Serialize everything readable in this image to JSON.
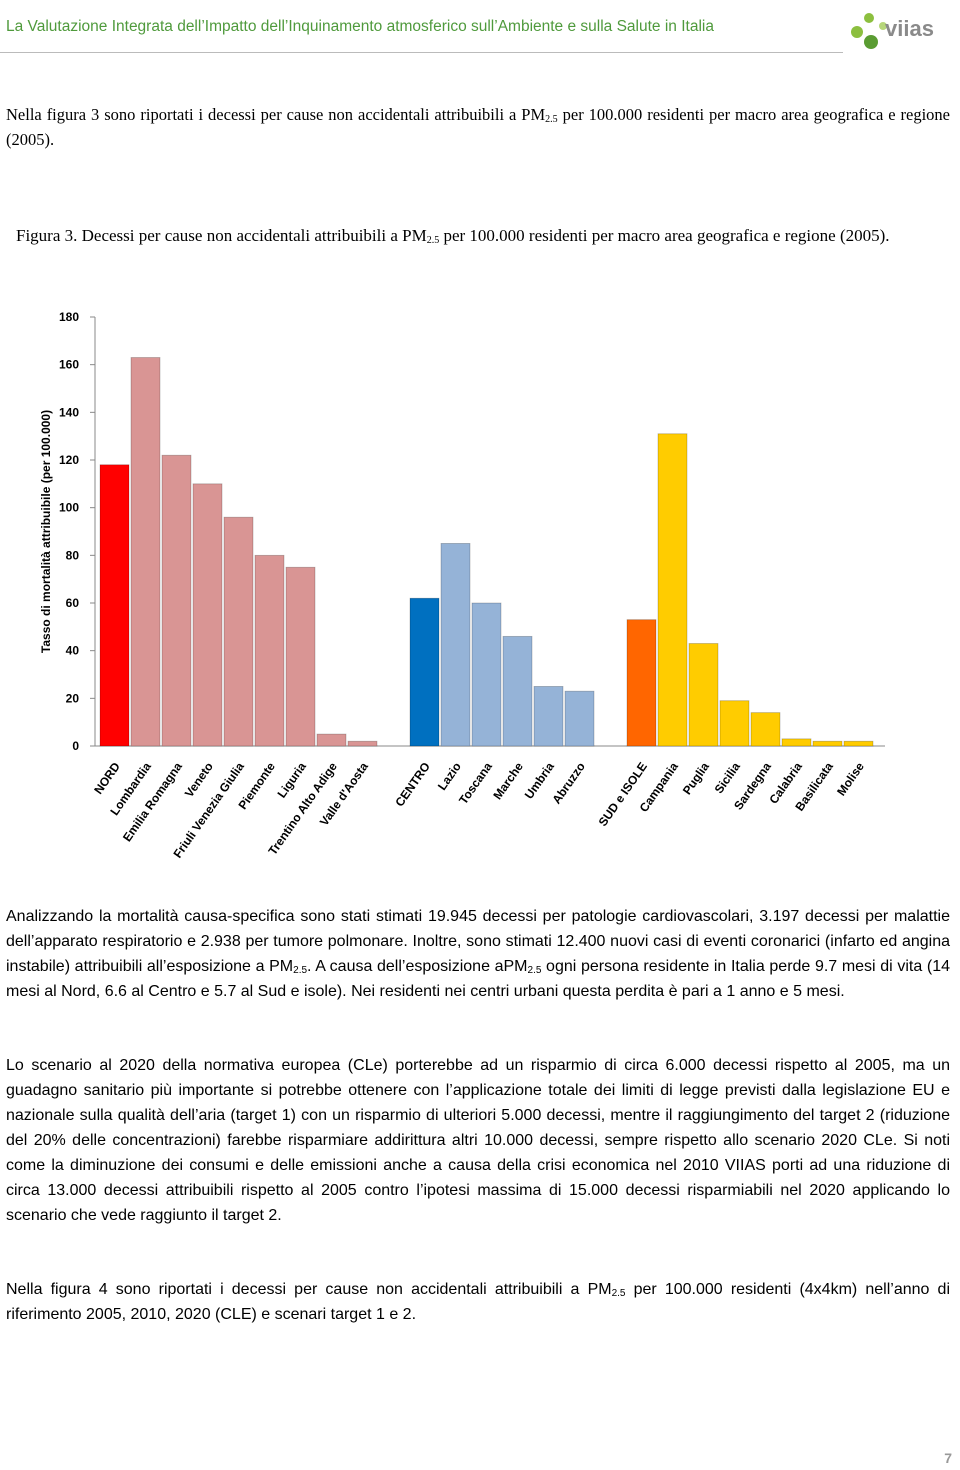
{
  "header": {
    "title": "La Valutazione Integrata dell’Impatto dell’Inquinamento atmosferico sull’Ambiente e sulla Salute in Italia",
    "logo": "viias"
  },
  "intro": [
    "Nella figura 3 sono riportati i decessi per cause non accidentali attribuibili a PM",
    "2.5",
    " per 100.000 residenti per macro area geografica e regione (2005)."
  ],
  "caption": [
    "Figura 3. Decessi per cause non accidentali attribuibili a PM",
    "2.5",
    " per 100.000 residenti per macro area geografica e regione (2005)."
  ],
  "chart_data": {
    "type": "bar",
    "y_label": "Tasso di mortalità attribuibile (per 100.000)",
    "categories": [
      "NORD",
      "Lombardia",
      "Emilia Romagna",
      "Veneto",
      "Friuli Venezia Giulia",
      "Piemonte",
      "Liguria",
      "Trentino Alto Adige",
      "Valle d'Aosta",
      "CENTRO",
      "Lazio",
      "Toscana",
      "Marche",
      "Umbria",
      "Abruzzo",
      "SUD e ISOLE",
      "Campania",
      "Puglia",
      "Sicilia",
      "Sardegna",
      "Calabria",
      "Basilicata",
      "Molise"
    ],
    "values": [
      118,
      163,
      122,
      110,
      96,
      80,
      75,
      5,
      2,
      62,
      85,
      60,
      46,
      25,
      23,
      53,
      131,
      43,
      19,
      14,
      3,
      2,
      2
    ],
    "colors": [
      "#ff0000",
      "#d99594",
      "#d99594",
      "#d99594",
      "#d99594",
      "#d99594",
      "#d99594",
      "#d99594",
      "#d99594",
      "#0070c0",
      "#95b3d7",
      "#95b3d7",
      "#95b3d7",
      "#95b3d7",
      "#95b3d7",
      "#ff6600",
      "#ffcc00",
      "#ffcc00",
      "#ffcc00",
      "#ffcc00",
      "#ffcc00",
      "#ffcc00",
      "#ffcc00"
    ],
    "ylim": [
      0,
      180
    ],
    "yticks": [
      0,
      20,
      40,
      60,
      80,
      100,
      120,
      140,
      160,
      180
    ],
    "grid": false
  },
  "paragraphs": [
    [
      "Analizzando la mortalità causa-specifica sono stati stimati 19.945 decessi per patologie cardiovascolari, 3.197 decessi per malattie dell’apparato respiratorio e 2.938 per tumore polmonare. Inoltre, sono stimati 12.400 nuovi casi di eventi coronarici (infarto ed angina instabile) attribuibili all’esposizione a PM",
      "2.5",
      ". A causa dell’esposizione aPM",
      "2.5",
      " ogni persona residente in Italia perde 9.7 mesi di vita (14 mesi al Nord, 6.6 al Centro e 5.7 al Sud e isole). Nei residenti nei centri urbani questa perdita è pari a 1 anno e 5 mesi."
    ],
    [
      "Lo scenario al 2020 della normativa europea (CLe) porterebbe ad un risparmio di circa 6.000 decessi rispetto al 2005, ma un guadagno sanitario più importante si potrebbe ottenere con l’applicazione totale dei limiti di legge previsti dalla legislazione EU e nazionale sulla qualità dell’aria (target 1) con un risparmio di ulteriori 5.000 decessi, mentre il raggiungimento del target 2 (riduzione del 20% delle concentrazioni) farebbe risparmiare addirittura altri 10.000 decessi, sempre rispetto allo scenario 2020 CLe. Si noti come la diminuzione dei consumi e delle emissioni anche a causa della crisi economica nel 2010 VIIAS porti ad una riduzione di circa 13.000 decessi attribuibili rispetto al 2005 contro l’ipotesi massima di 15.000 decessi risparmiabili nel 2020 applicando lo scenario che vede raggiunto il target 2."
    ],
    [
      "Nella figura 4 sono riportati i decessi per cause non accidentali attribuibili a PM",
      "2.5",
      " per 100.000 residenti (4x4km) nell’anno di riferimento 2005, 2010, 2020 (CLE) e scenari target 1 e 2."
    ]
  ],
  "page_number": "7"
}
